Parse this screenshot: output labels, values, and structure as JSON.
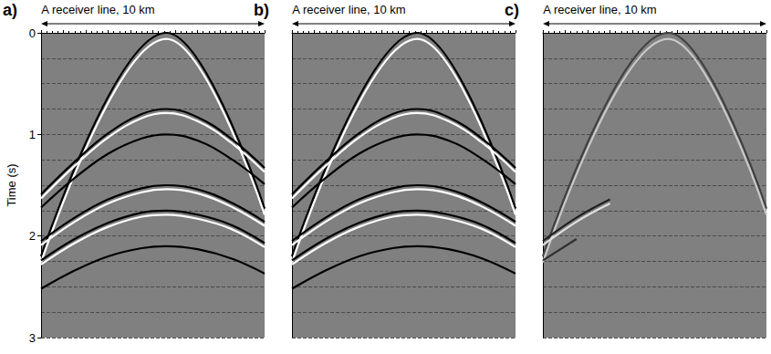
{
  "chart_data": [
    {
      "letter": "a)",
      "title": "A receiver line, 10 km",
      "type": "line",
      "xlim": [
        0,
        10
      ],
      "xticks": [
        0,
        1,
        2,
        3,
        4,
        5,
        6,
        7,
        8,
        9,
        10
      ],
      "ylim": [
        0,
        3
      ],
      "yticks": [
        0,
        1,
        2,
        3
      ],
      "ylabel": "Time (s)",
      "tick_labels": "y",
      "grid": true,
      "series": [
        {
          "color": "#000000",
          "x": [
            0,
            5.6,
            10
          ],
          "values": [
            2.2,
            0,
            1.73
          ]
        },
        {
          "color": "#ffffff",
          "x": [
            0,
            5.6,
            10
          ],
          "values": [
            2.26,
            0.06,
            1.79
          ]
        },
        {
          "color": "#000000",
          "x": [
            0,
            1.5,
            3,
            4.5,
            5.6,
            7,
            8.5,
            10
          ],
          "values": [
            1.59,
            1.27,
            0.99,
            0.8,
            0.75,
            0.83,
            1.04,
            1.33
          ]
        },
        {
          "color": "#ffffff",
          "x": [
            0,
            1.5,
            3,
            4.5,
            5.6,
            7,
            8.5,
            10
          ],
          "values": [
            1.63,
            1.31,
            1.03,
            0.84,
            0.79,
            0.87,
            1.08,
            1.37
          ]
        },
        {
          "color": "#000000",
          "x": [
            0,
            1.5,
            3,
            4.5,
            5.6,
            7,
            8.5,
            10
          ],
          "values": [
            1.72,
            1.43,
            1.19,
            1.04,
            1.0,
            1.06,
            1.24,
            1.49
          ]
        },
        {
          "color": "#000000",
          "x": [
            0,
            1.5,
            3,
            4.5,
            5.6,
            7,
            8.5,
            10
          ],
          "values": [
            2.05,
            1.82,
            1.64,
            1.53,
            1.5,
            1.54,
            1.67,
            1.86
          ]
        },
        {
          "color": "#ffffff",
          "x": [
            0,
            1.5,
            3,
            4.5,
            5.6,
            7,
            8.5,
            10
          ],
          "values": [
            2.09,
            1.86,
            1.68,
            1.57,
            1.54,
            1.58,
            1.71,
            1.9
          ]
        },
        {
          "color": "#000000",
          "x": [
            0,
            1.5,
            3,
            4.5,
            5.6,
            7,
            8.5,
            10
          ],
          "values": [
            2.24,
            2.03,
            1.87,
            1.77,
            1.75,
            1.79,
            1.89,
            2.07
          ]
        },
        {
          "color": "#ffffff",
          "x": [
            0,
            1.5,
            3,
            4.5,
            5.6,
            7,
            8.5,
            10
          ],
          "values": [
            2.28,
            2.07,
            1.91,
            1.81,
            1.79,
            1.83,
            1.93,
            2.11
          ]
        },
        {
          "color": "#000000",
          "x": [
            0,
            1.5,
            3,
            4.5,
            5.6,
            7,
            8.5,
            10
          ],
          "values": [
            2.52,
            2.34,
            2.2,
            2.12,
            2.1,
            2.13,
            2.22,
            2.37
          ]
        }
      ]
    },
    {
      "letter": "b)",
      "title": "A receiver line, 10 km",
      "type": "line",
      "xlim": [
        0,
        10
      ],
      "xticks": [
        0,
        1,
        2,
        3,
        4,
        5,
        6,
        7,
        8,
        9,
        10
      ],
      "ylim": [
        0,
        3
      ],
      "yticks": [
        0,
        1,
        2,
        3
      ],
      "tick_labels": false,
      "grid": true,
      "series": [
        {
          "color": "#000000",
          "x": [
            0,
            5.6,
            10
          ],
          "values": [
            2.2,
            0,
            1.73
          ]
        },
        {
          "color": "#ffffff",
          "x": [
            0,
            5.6,
            10
          ],
          "values": [
            2.26,
            0.06,
            1.79
          ]
        },
        {
          "color": "#000000",
          "x": [
            0,
            1.5,
            3,
            4.5,
            5.6,
            7,
            8.5,
            10
          ],
          "values": [
            1.59,
            1.27,
            0.99,
            0.8,
            0.75,
            0.83,
            1.04,
            1.33
          ]
        },
        {
          "color": "#ffffff",
          "x": [
            0,
            1.5,
            3,
            4.5,
            5.6,
            7,
            8.5,
            10
          ],
          "values": [
            1.63,
            1.31,
            1.03,
            0.84,
            0.79,
            0.87,
            1.08,
            1.37
          ]
        },
        {
          "color": "#000000",
          "x": [
            0,
            1.5,
            3,
            4.5,
            5.6,
            7,
            8.5,
            10
          ],
          "values": [
            1.72,
            1.43,
            1.19,
            1.04,
            1.0,
            1.06,
            1.24,
            1.49
          ]
        },
        {
          "color": "#000000",
          "x": [
            0,
            1.5,
            3,
            4.5,
            5.6,
            7,
            8.5,
            10
          ],
          "values": [
            2.05,
            1.82,
            1.64,
            1.53,
            1.5,
            1.54,
            1.67,
            1.86
          ]
        },
        {
          "color": "#ffffff",
          "x": [
            0,
            1.5,
            3,
            4.5,
            5.6,
            7,
            8.5,
            10
          ],
          "values": [
            2.09,
            1.86,
            1.68,
            1.57,
            1.54,
            1.58,
            1.71,
            1.9
          ]
        },
        {
          "color": "#000000",
          "x": [
            0,
            1.5,
            3,
            4.5,
            5.6,
            7,
            8.5,
            10
          ],
          "values": [
            2.24,
            2.03,
            1.87,
            1.77,
            1.75,
            1.79,
            1.89,
            2.07
          ]
        },
        {
          "color": "#ffffff",
          "x": [
            0,
            1.5,
            3,
            4.5,
            5.6,
            7,
            8.5,
            10
          ],
          "values": [
            2.28,
            2.07,
            1.91,
            1.81,
            1.79,
            1.83,
            1.93,
            2.11
          ]
        },
        {
          "color": "#000000",
          "x": [
            0,
            1.5,
            3,
            4.5,
            5.6,
            7,
            8.5,
            10
          ],
          "values": [
            2.52,
            2.34,
            2.2,
            2.12,
            2.1,
            2.13,
            2.22,
            2.37
          ]
        }
      ]
    },
    {
      "letter": "c)",
      "title": "A receiver line, 10 km",
      "type": "line",
      "xlim": [
        0,
        10
      ],
      "xticks": [
        0,
        1,
        2,
        3,
        4,
        5,
        6,
        7,
        8,
        9,
        10
      ],
      "ylim": [
        0,
        3
      ],
      "yticks": [
        0,
        1,
        2,
        3
      ],
      "tick_labels": false,
      "grid": true,
      "series": [
        {
          "color": "#404040",
          "x": [
            0,
            5.6,
            10
          ],
          "values": [
            2.2,
            0,
            1.73
          ]
        },
        {
          "color": "#c8c8c8",
          "x": [
            0,
            5.6,
            10
          ],
          "values": [
            2.26,
            0.06,
            1.79
          ]
        },
        {
          "color": "#202020",
          "x": [
            0,
            1.5,
            3
          ],
          "values": [
            2.05,
            1.82,
            1.64
          ]
        },
        {
          "color": "#e0e0e0",
          "x": [
            0,
            1.5,
            3
          ],
          "values": [
            2.09,
            1.86,
            1.68
          ]
        },
        {
          "color": "#303030",
          "x": [
            0,
            1.5
          ],
          "values": [
            2.24,
            2.03
          ]
        }
      ]
    }
  ]
}
